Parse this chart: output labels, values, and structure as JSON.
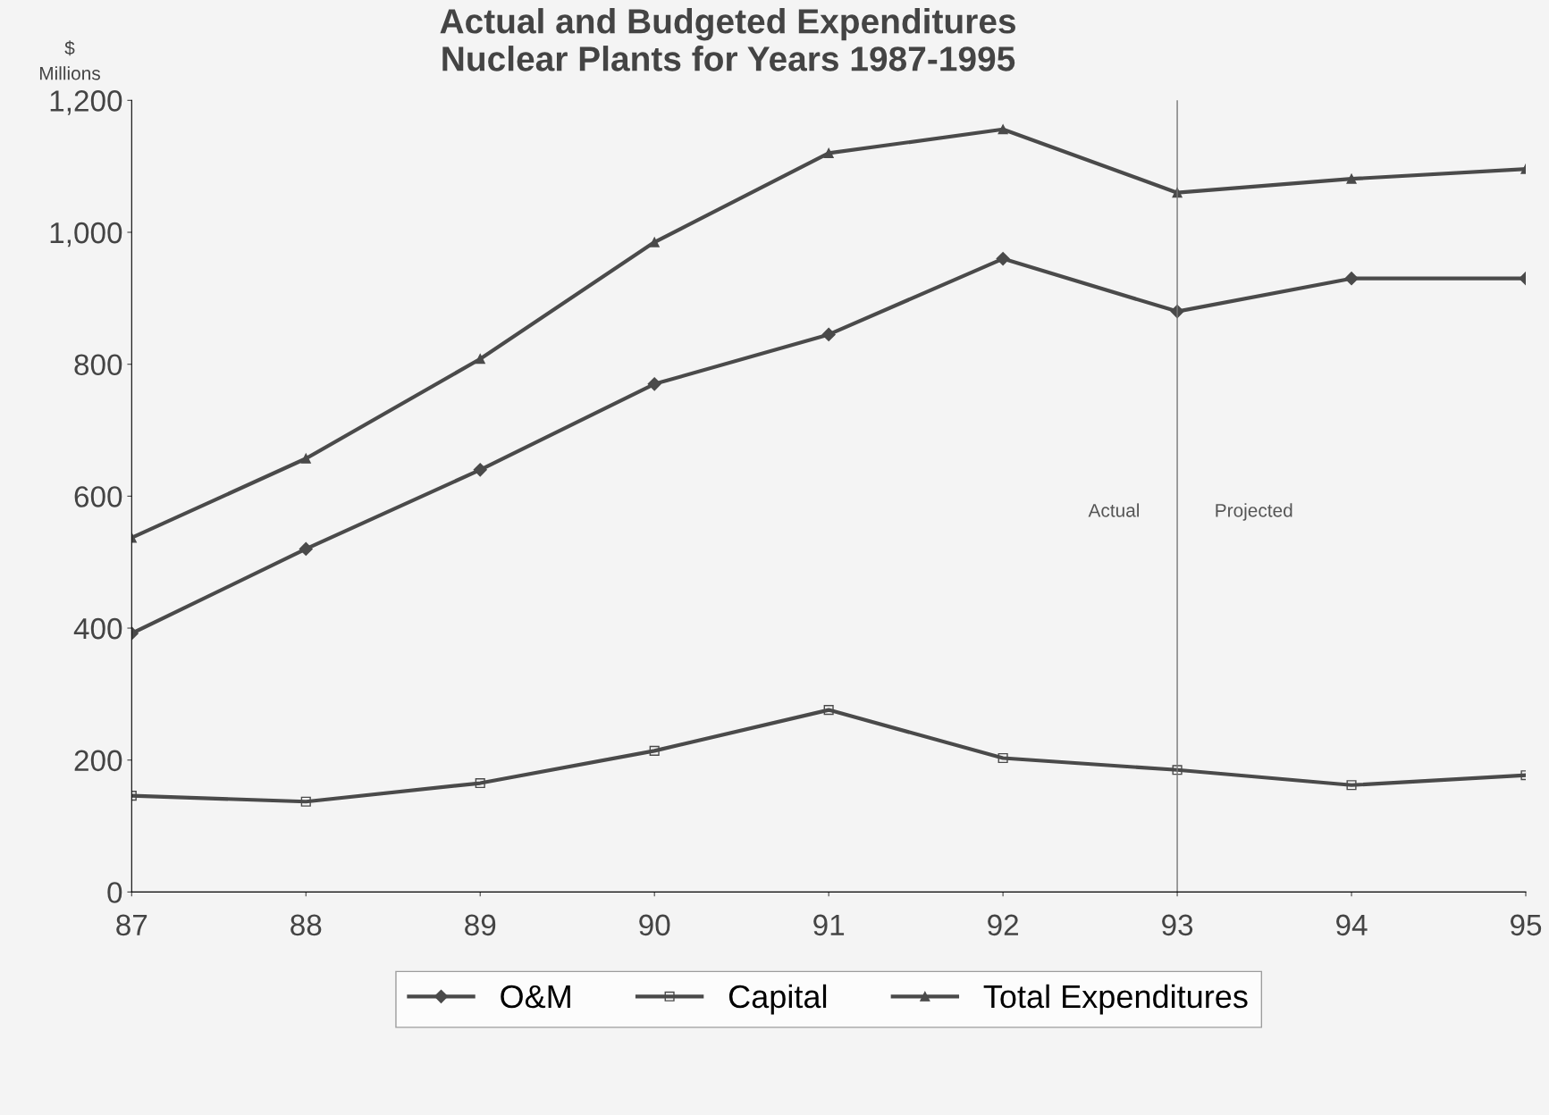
{
  "chart_data": {
    "type": "line",
    "title": "Actual and Budgeted Expenditures\nNuclear Plants for Years 1987-1995",
    "ylabel": "$\nMillions",
    "x": [
      87,
      88,
      89,
      90,
      91,
      92,
      93,
      94,
      95
    ],
    "series": [
      {
        "name": "O&M",
        "color": "#4a4a4a",
        "marker": "diamond",
        "values": [
          392,
          520,
          640,
          770,
          845,
          960,
          880,
          930,
          930
        ]
      },
      {
        "name": "Capital",
        "color": "#4a4a4a",
        "marker": "square",
        "values": [
          146,
          137,
          165,
          214,
          276,
          203,
          185,
          162,
          177
        ]
      },
      {
        "name": "Total Expenditures",
        "color": "#4a4a4a",
        "marker": "triangle",
        "values": [
          537,
          657,
          808,
          985,
          1120,
          1156,
          1060,
          1081,
          1096
        ]
      }
    ],
    "xlim": [
      87,
      95
    ],
    "xticks": [
      87,
      88,
      89,
      90,
      91,
      92,
      93,
      94,
      95
    ],
    "ylim": [
      0,
      1200
    ],
    "yticks": [
      0,
      200,
      400,
      600,
      800,
      {
        "value": 1000,
        "label": "1,000"
      },
      {
        "value": 1200,
        "label": "1,200"
      }
    ],
    "ref_lines": [
      {
        "axis": "x",
        "value": 93,
        "color": "#777777",
        "line_style": "solid"
      }
    ],
    "annotations": [
      "Actual",
      "Projected"
    ],
    "grid": false,
    "legend": "bottom",
    "line_style": "solid"
  }
}
